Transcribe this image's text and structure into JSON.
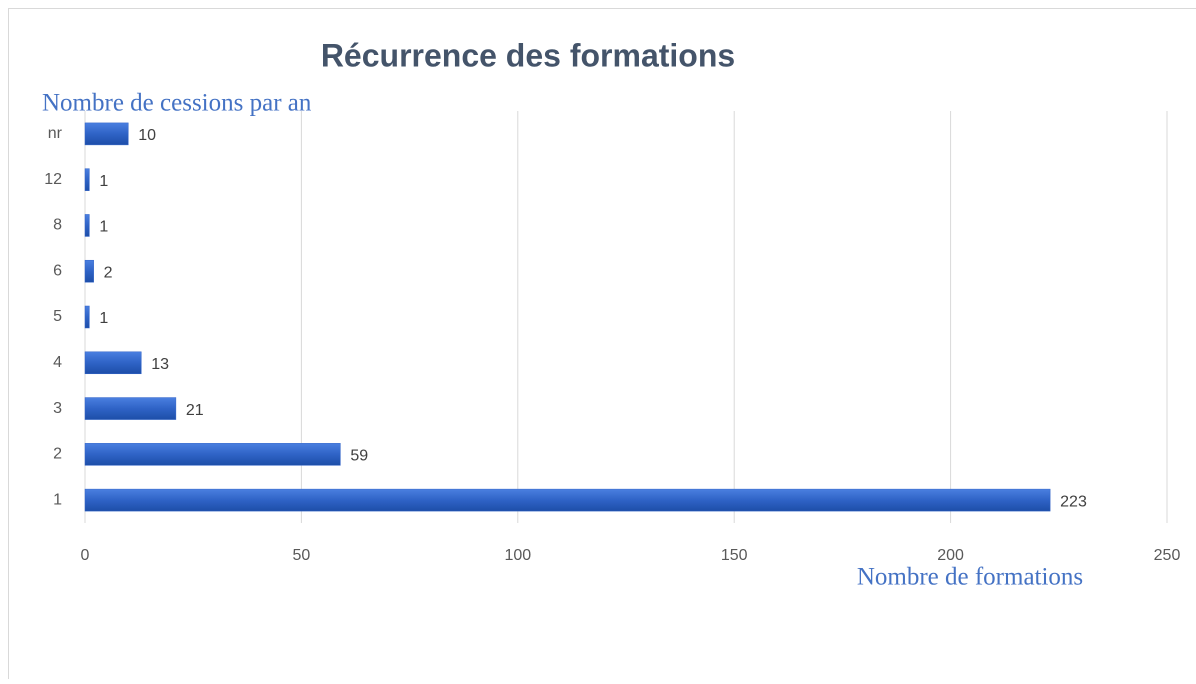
{
  "chart_data": {
    "type": "bar",
    "orientation": "horizontal",
    "title": "Récurrence des formations",
    "y_label": "Nombre de cessions par an",
    "x_label": "Nombre de formations",
    "categories": [
      "1",
      "2",
      "3",
      "4",
      "5",
      "6",
      "8",
      "12",
      "nr"
    ],
    "values": [
      223,
      59,
      21,
      13,
      1,
      2,
      1,
      1,
      10
    ],
    "color": "#3264c8",
    "xlim": [
      0,
      250
    ],
    "xticks": [
      0,
      50,
      100,
      150,
      200,
      250
    ],
    "grid": true
  }
}
